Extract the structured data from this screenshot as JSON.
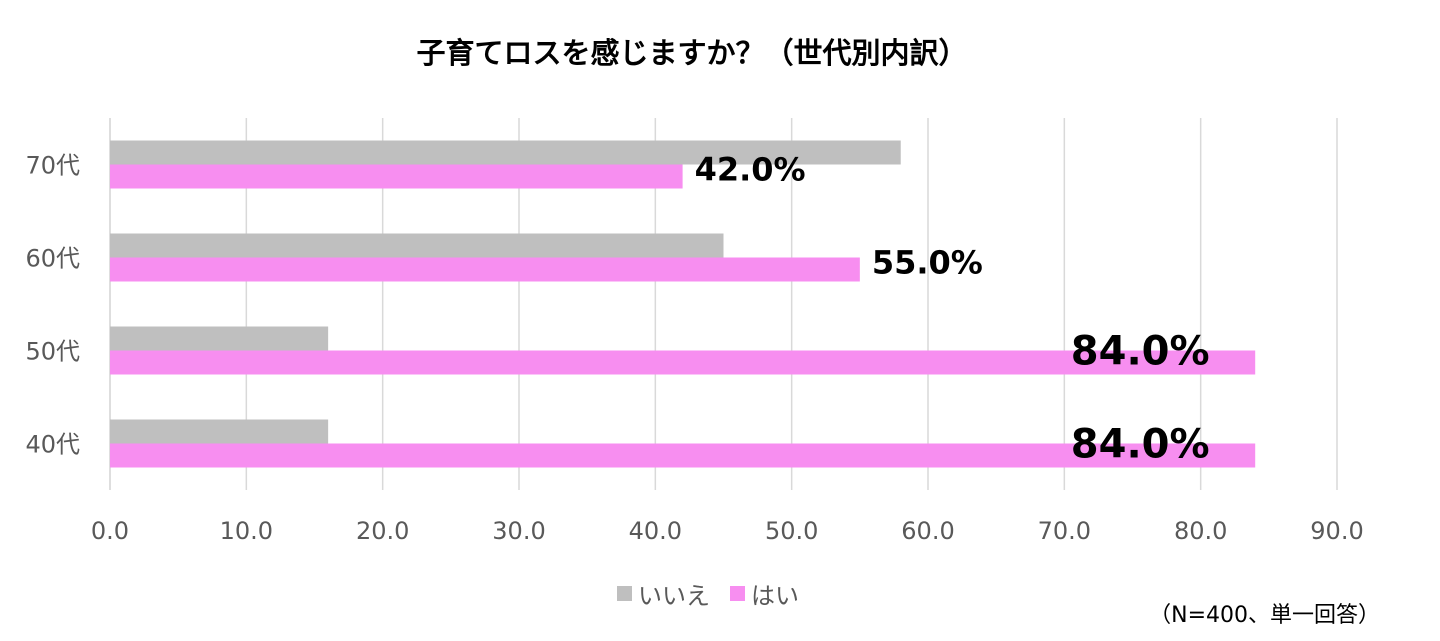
{
  "chart_data": {
    "type": "bar",
    "orientation": "horizontal",
    "title": "子育てロスを感じますか？（世代別内訳）",
    "categories": [
      "70代",
      "60代",
      "50代",
      "40代"
    ],
    "series": [
      {
        "name": "いいえ",
        "color": "#bfbfbf",
        "values": [
          58.0,
          45.0,
          16.0,
          16.0
        ]
      },
      {
        "name": "はい",
        "color": "#f78ef0",
        "values": [
          42.0,
          55.0,
          84.0,
          84.0
        ]
      }
    ],
    "data_labels": [
      "42.0%",
      "55.0%",
      "84.0%",
      "84.0%"
    ],
    "xlim": [
      0,
      90
    ],
    "x_ticks": [
      "0.0",
      "10.0",
      "20.0",
      "30.0",
      "40.0",
      "50.0",
      "60.0",
      "70.0",
      "80.0",
      "90.0"
    ],
    "grid": "vertical",
    "legend_position": "bottom",
    "footnote": "（N=400、単一回答）"
  }
}
